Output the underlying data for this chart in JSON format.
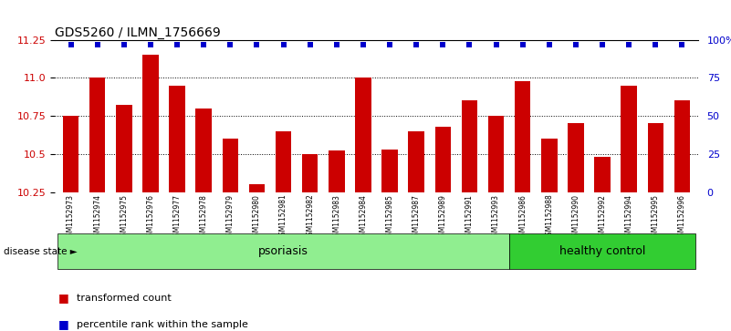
{
  "title": "GDS5260 / ILMN_1756669",
  "samples": [
    "GSM1152973",
    "GSM1152974",
    "GSM1152975",
    "GSM1152976",
    "GSM1152977",
    "GSM1152978",
    "GSM1152979",
    "GSM1152980",
    "GSM1152981",
    "GSM1152982",
    "GSM1152983",
    "GSM1152984",
    "GSM1152985",
    "GSM1152987",
    "GSM1152989",
    "GSM1152991",
    "GSM1152993",
    "GSM1152986",
    "GSM1152988",
    "GSM1152990",
    "GSM1152992",
    "GSM1152994",
    "GSM1152995",
    "GSM1152996"
  ],
  "bar_values": [
    10.75,
    11.0,
    10.82,
    11.15,
    10.95,
    10.8,
    10.6,
    10.3,
    10.65,
    10.5,
    10.52,
    11.0,
    10.53,
    10.65,
    10.68,
    10.85,
    10.75,
    10.98,
    10.6,
    10.7,
    10.48,
    10.95,
    10.7,
    10.85
  ],
  "percentile_values": [
    97,
    97,
    97,
    97,
    97,
    97,
    97,
    97,
    97,
    97,
    97,
    97,
    97,
    97,
    97,
    97,
    97,
    97,
    97,
    97,
    97,
    97,
    97,
    97
  ],
  "bar_color": "#cc0000",
  "dot_color": "#0000cc",
  "ylim_left": [
    10.25,
    11.25
  ],
  "ylim_right": [
    0,
    100
  ],
  "yticks_left": [
    10.25,
    10.5,
    10.75,
    11.0,
    11.25
  ],
  "yticks_right": [
    0,
    25,
    50,
    75,
    100
  ],
  "psoriasis_count": 17,
  "healthy_count": 7,
  "psoriasis_label": "psoriasis",
  "healthy_label": "healthy control",
  "disease_state_label": "disease state",
  "legend_bar_label": "transformed count",
  "legend_dot_label": "percentile rank within the sample",
  "bg_color_psoriasis": "#90ee90",
  "bg_color_healthy": "#32cd32",
  "xticklabel_bg": "#d3d3d3",
  "bar_width": 0.6
}
